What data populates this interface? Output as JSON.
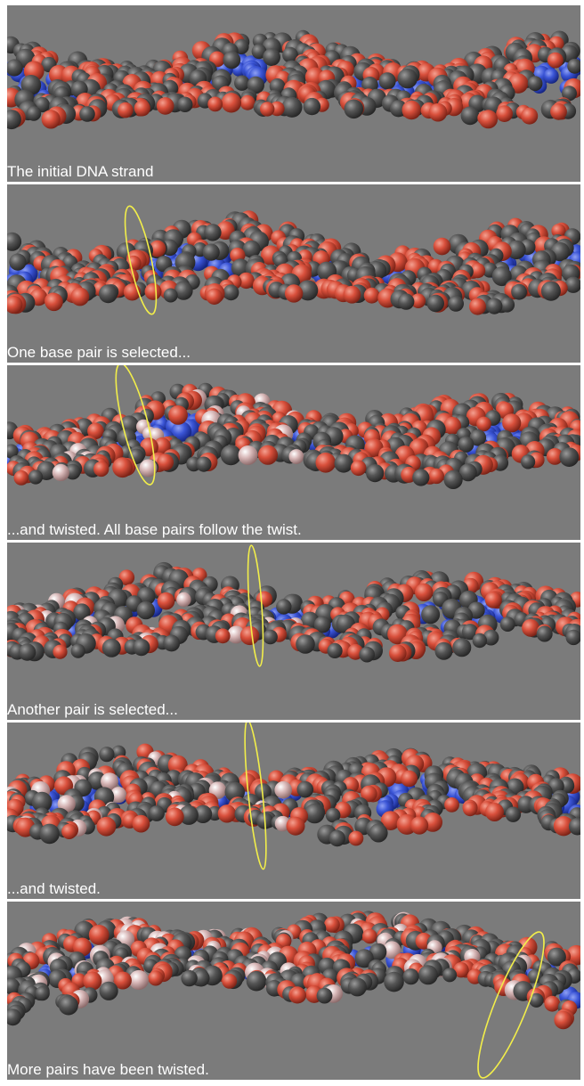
{
  "panels": [
    {
      "caption": "The initial DNA strand",
      "stage": "initial"
    },
    {
      "caption": "One base pair is selected...",
      "stage": "selected"
    },
    {
      "caption": "...and twisted. All base pairs follow the twist.",
      "stage": "twisted"
    },
    {
      "caption": "Another pair is selected...",
      "stage": "selected"
    },
    {
      "caption": "...and twisted.",
      "stage": "twisted"
    },
    {
      "caption": "More pairs have been twisted.",
      "stage": "twisted-more"
    }
  ],
  "colors": {
    "background": "#7b7b7b",
    "oxygen": "#d9503c",
    "carbon": "#555555",
    "nitrogen": "#3b55d6",
    "highlight": "#d8b8b8",
    "selection_ring": "#f2ee4a",
    "caption_text": "#ffffff"
  },
  "icons": {
    "selection": "selection-ring-icon"
  }
}
